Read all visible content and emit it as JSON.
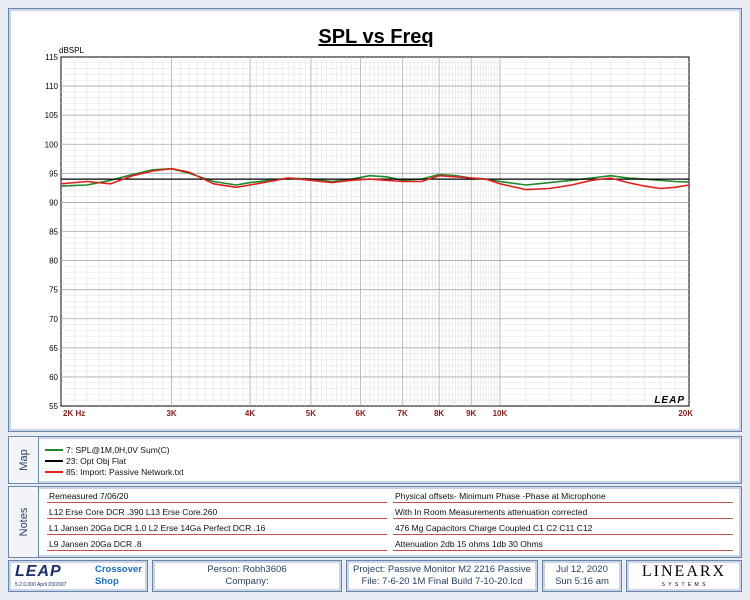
{
  "chart_data": {
    "type": "line",
    "title": "SPL vs Freq",
    "ylabel": "dBSPL",
    "xscale": "log",
    "xlim": [
      2000,
      20000
    ],
    "ylim": [
      55,
      115
    ],
    "yticks": [
      55,
      60,
      65,
      70,
      75,
      80,
      85,
      90,
      95,
      100,
      105,
      110,
      115
    ],
    "xtick_labels": [
      {
        "v": 2000,
        "t": "2K Hz"
      },
      {
        "v": 3000,
        "t": "3K"
      },
      {
        "v": 4000,
        "t": "4K"
      },
      {
        "v": 5000,
        "t": "5K"
      },
      {
        "v": 6000,
        "t": "6K"
      },
      {
        "v": 7000,
        "t": "7K"
      },
      {
        "v": 8000,
        "t": "8K"
      },
      {
        "v": 9000,
        "t": "9K"
      },
      {
        "v": 10000,
        "t": "10K"
      },
      {
        "v": 20000,
        "t": "20K"
      }
    ],
    "grid": true,
    "watermark": "LEAP",
    "series": [
      {
        "name": "7: SPL@1M,0H,0V Sum(C)",
        "color": "#1f8a2a",
        "x": [
          2000,
          2200,
          2400,
          2600,
          2800,
          3000,
          3200,
          3500,
          3800,
          4000,
          4300,
          4600,
          5000,
          5400,
          5800,
          6200,
          6600,
          7000,
          7500,
          8000,
          8500,
          9000,
          9500,
          10000,
          11000,
          12000,
          13000,
          14000,
          15000,
          16000,
          17000,
          18000,
          19000,
          20000
        ],
        "y": [
          92.8,
          93.0,
          93.8,
          94.8,
          95.6,
          95.8,
          95.0,
          93.6,
          93.0,
          93.4,
          93.8,
          94.2,
          94.0,
          93.6,
          94.0,
          94.6,
          94.4,
          93.8,
          94.0,
          94.8,
          94.6,
          94.2,
          94.0,
          93.6,
          93.0,
          93.4,
          93.8,
          94.2,
          94.6,
          94.2,
          94.0,
          93.8,
          93.6,
          93.5
        ]
      },
      {
        "name": "23: Opt Obj Flat",
        "color": "#000000",
        "x": [
          2000,
          20000
        ],
        "y": [
          94.0,
          94.0
        ]
      },
      {
        "name": "85: Import: Passive Network.txt",
        "color": "#e02020",
        "x": [
          2000,
          2200,
          2400,
          2600,
          2800,
          3000,
          3200,
          3500,
          3800,
          4000,
          4300,
          4600,
          5000,
          5400,
          5800,
          6200,
          6600,
          7000,
          7500,
          8000,
          8500,
          9000,
          9500,
          10000,
          11000,
          12000,
          13000,
          14000,
          15000,
          16000,
          17000,
          18000,
          19000,
          20000
        ],
        "y": [
          93.2,
          93.6,
          93.2,
          94.6,
          95.4,
          95.8,
          95.2,
          93.2,
          92.6,
          93.0,
          93.6,
          94.2,
          93.8,
          93.4,
          93.8,
          94.0,
          93.8,
          93.6,
          93.6,
          94.6,
          94.4,
          94.2,
          94.0,
          93.2,
          92.2,
          92.4,
          93.0,
          93.8,
          94.2,
          93.4,
          92.8,
          92.4,
          92.6,
          93.0
        ]
      }
    ]
  },
  "map": {
    "label": "Map",
    "legend": [
      {
        "text": "7: SPL@1M,0H,0V Sum(C)",
        "color": "#1f8a2a"
      },
      {
        "text": "23: Opt Obj Flat",
        "color": "#000000"
      },
      {
        "text": "85: Import: Passive Network.txt",
        "color": "#e02020"
      }
    ]
  },
  "notes": {
    "label": "Notes",
    "left": [
      "Remeasured 7/06/20",
      "L12 Erse Core  DCR .390 L13 Erse Core.260",
      "L1 Jansen 20Ga DCR 1.0  L2 Erse 14Ga Perfect DCR .16",
      "L9 Jansen 20Ga DCR .8"
    ],
    "right": [
      "Physical offsets- Minimum Phase -Phase at Microphone",
      "With In Room Measurements attenuation corrected",
      "476 Mg Capacitors Charge Coupled C1 C2 C11 C12",
      "Attenuation 2db 15 ohms 1db 30 Ohms"
    ]
  },
  "footer": {
    "brand": "LEAP",
    "version": "5.2.0.000  April 03/2007",
    "module_line1": "Crossover",
    "module_line2": "Shop",
    "person": "Person: Robh3606",
    "company": "Company:",
    "project": "Project: Passive Monitor M2 2216 Passive",
    "file": "File: 7-6-20 1M Final Build 7-10-20.lcd",
    "date": "Jul 12, 2020",
    "time": "Sun  5:16 am",
    "vendor": "LINEARX",
    "vendor_sub": "S Y S T E M S"
  }
}
